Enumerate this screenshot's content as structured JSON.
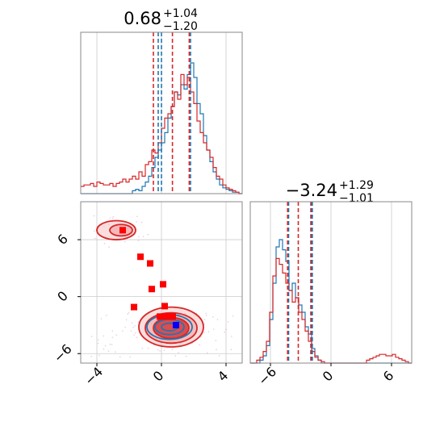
{
  "chart_data": {
    "type": "corner",
    "colors": {
      "blue": "#1f77b4",
      "red": "#d62728",
      "red_fill": "#f0a0a0",
      "grid": "#cccccc",
      "frame": "#888888"
    },
    "parameters": [
      {
        "id": "p0",
        "title_median": "0.68",
        "title_plus": "+1.04",
        "title_minus": "−1.20",
        "xlim": [
          -5,
          5
        ],
        "ticks": [
          -4,
          0,
          4
        ],
        "tick_labels": [
          "−4",
          "0",
          "4"
        ]
      },
      {
        "id": "p1",
        "title_median": "−3.24",
        "title_plus": "+1.29",
        "title_minus": "−1.01",
        "xlim": [
          -8,
          8
        ],
        "ticks": [
          -6,
          0,
          6
        ],
        "tick_labels": [
          "−6",
          "0",
          "6"
        ]
      }
    ],
    "marginal_p0": {
      "quantile_lines": {
        "blue": [
          -0.2,
          0.0,
          1.8
        ],
        "red": [
          -0.5,
          0.68,
          1.72
        ]
      },
      "blue_hist": {
        "bin_start": -5,
        "bin_width": 0.2,
        "heights": [
          0,
          0,
          0,
          0,
          0,
          0,
          0,
          0,
          0,
          0,
          0,
          0,
          0,
          0,
          0,
          0,
          0.02,
          0.03,
          0.02,
          0.05,
          0.08,
          0.12,
          0.18,
          0.25,
          0.3,
          0.35,
          0.42,
          0.52,
          0.6,
          0.7,
          0.68,
          0.75,
          0.72,
          0.82,
          0.9,
          0.8,
          0.62,
          0.55,
          0.4,
          0.3,
          0.22,
          0.15,
          0.1,
          0.06,
          0.04,
          0.03,
          0.02,
          0.01,
          0.01,
          0
        ]
      },
      "red_hist": {
        "bin_start": -5,
        "bin_width": 0.2,
        "heights": [
          0.05,
          0.06,
          0.06,
          0.07,
          0.05,
          0.08,
          0.07,
          0.06,
          0.06,
          0.07,
          0.05,
          0.07,
          0.08,
          0.1,
          0.08,
          0.1,
          0.12,
          0.1,
          0.15,
          0.12,
          0.2,
          0.22,
          0.3,
          0.28,
          0.35,
          0.45,
          0.52,
          0.55,
          0.6,
          0.7,
          0.65,
          0.82,
          0.75,
          0.8,
          0.7,
          0.62,
          0.5,
          0.42,
          0.35,
          0.3,
          0.25,
          0.18,
          0.12,
          0.1,
          0.06,
          0.04,
          0.03,
          0.02,
          0.01,
          0
        ]
      }
    },
    "marginal_p1": {
      "quantile_lines": {
        "blue": [
          -4.2,
          -2.0,
          -1.85
        ],
        "red": [
          -4.3,
          -3.24,
          -1.95
        ]
      },
      "blue_hist": {
        "bin_start": -8,
        "bin_width": 0.32,
        "heights": [
          0,
          0,
          0,
          0.02,
          0.05,
          0.12,
          0.3,
          0.55,
          0.8,
          0.85,
          0.78,
          0.7,
          0.5,
          0.55,
          0.45,
          0.4,
          0.35,
          0.25,
          0.2,
          0.1,
          0.05,
          0.02,
          0,
          0,
          0,
          0,
          0,
          0,
          0,
          0,
          0,
          0,
          0,
          0,
          0,
          0,
          0,
          0,
          0,
          0,
          0,
          0,
          0,
          0,
          0,
          0,
          0,
          0,
          0,
          0
        ]
      },
      "red_hist": {
        "bin_start": -8,
        "bin_width": 0.32,
        "heights": [
          0,
          0,
          0.02,
          0.04,
          0.08,
          0.15,
          0.35,
          0.6,
          0.72,
          0.68,
          0.62,
          0.55,
          0.5,
          0.42,
          0.45,
          0.35,
          0.3,
          0.22,
          0.15,
          0.08,
          0.04,
          0.02,
          0.01,
          0,
          0,
          0,
          0,
          0,
          0,
          0,
          0,
          0,
          0,
          0,
          0,
          0,
          0.02,
          0.03,
          0.04,
          0.05,
          0.06,
          0.06,
          0.05,
          0.05,
          0.06,
          0.04,
          0.03,
          0.02,
          0.01,
          0
        ]
      }
    },
    "joint": {
      "ylim": [
        -7,
        10
      ],
      "red_contours": [
        {
          "cx": 0.6,
          "cy": -3.2,
          "rx": 2.0,
          "ry": 2.1
        },
        {
          "cx": 0.6,
          "cy": -3.3,
          "rx": 1.6,
          "ry": 1.6
        },
        {
          "cx": 0.6,
          "cy": -3.3,
          "rx": 1.1,
          "ry": 1.1
        },
        {
          "cx": -2.8,
          "cy": 7.0,
          "rx": 1.2,
          "ry": 1.0
        },
        {
          "cx": -2.5,
          "cy": 7.0,
          "rx": 0.7,
          "ry": 0.6
        }
      ],
      "blue_contours": [
        {
          "cx": 0.5,
          "cy": -3.2,
          "rx": 1.4,
          "ry": 1.3
        },
        {
          "cx": 0.5,
          "cy": -3.2,
          "rx": 0.9,
          "ry": 0.8
        },
        {
          "cx": 0.5,
          "cy": -3.2,
          "rx": 0.5,
          "ry": 0.4
        }
      ],
      "red_markers": [
        {
          "x": -2.4,
          "y": 7.0
        },
        {
          "x": -1.3,
          "y": 4.2
        },
        {
          "x": -0.7,
          "y": 3.5
        },
        {
          "x": -0.6,
          "y": 0.8
        },
        {
          "x": 0.1,
          "y": 1.3
        },
        {
          "x": -1.7,
          "y": -1.1
        },
        {
          "x": 0.2,
          "y": -1.0
        },
        {
          "x": -0.1,
          "y": -2.1
        },
        {
          "x": 0.3,
          "y": -2.1
        },
        {
          "x": 0.7,
          "y": -2.1
        }
      ],
      "blue_markers": [
        {
          "x": 0.9,
          "y": -3.0
        }
      ]
    }
  }
}
